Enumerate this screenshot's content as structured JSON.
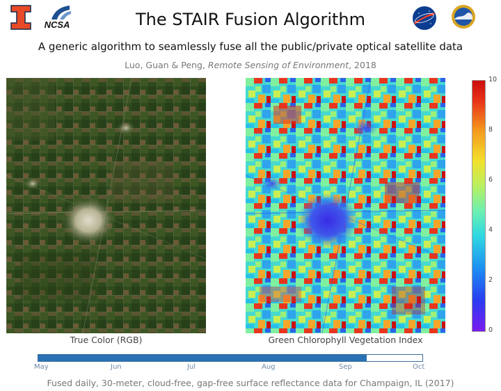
{
  "header": {
    "title": "The STAIR Fusion Algorithm",
    "subtitle": "A generic algorithm to seamlessly fuse all the public/private optical satellite data",
    "citation_authors": "Luo, Guan & Peng, ",
    "citation_journal": "Remote Sensing of Environment",
    "citation_year": ", 2018"
  },
  "logos": {
    "ncsa_text": "NCSA"
  },
  "panels": {
    "left_caption": "True Color (RGB)",
    "right_caption": "Green Chlorophyll Vegetation Index"
  },
  "colorbar": {
    "ticks": [
      "10",
      "8",
      "6",
      "4",
      "2",
      "0"
    ],
    "min": 0,
    "max": 10
  },
  "timeline": {
    "months": [
      "May",
      "Jun",
      "Jul",
      "Aug",
      "Sep",
      "Oct"
    ],
    "progress": 0.855
  },
  "footer": {
    "text": "Fused daily, 30-meter, cloud-free, gap-free surface reflectance data for Champaign, IL (2017)"
  }
}
